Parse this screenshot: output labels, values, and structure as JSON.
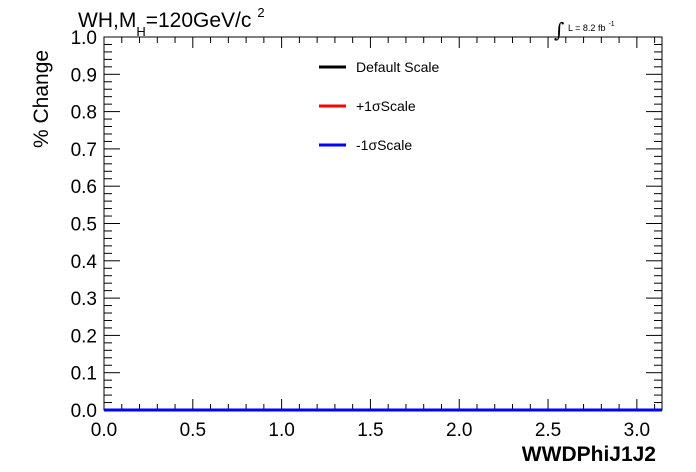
{
  "chart_data": {
    "type": "line",
    "title": {
      "part1": "WH,M",
      "sub": "H",
      "part2": "=120GeV/c",
      "sup": "2"
    },
    "lumi": {
      "integral": "∫",
      "text": "L = 8.2 fb",
      "sup": "-1"
    },
    "xlabel": "WWDPhiJ1J2",
    "ylabel": "% Change",
    "xlim": [
      0,
      3.14159
    ],
    "ylim": [
      0,
      1.0
    ],
    "x_ticks": [
      "0.0",
      "0.5",
      "1.0",
      "1.5",
      "2.0",
      "2.5",
      "3.0"
    ],
    "y_ticks": [
      "0.0",
      "0.1",
      "0.2",
      "0.3",
      "0.4",
      "0.5",
      "0.6",
      "0.7",
      "0.8",
      "0.9",
      "1.0"
    ],
    "grid": false,
    "legend_position": "top-center",
    "series": [
      {
        "name": "Default Scale",
        "color": "#000000",
        "x": [
          0,
          3.14159
        ],
        "y": [
          0,
          0
        ]
      },
      {
        "name": "+1σScale",
        "color": "#ff0000",
        "x": [
          0,
          3.14159
        ],
        "y": [
          0,
          0
        ]
      },
      {
        "name": "-1σScale",
        "color": "#0000ff",
        "x": [
          0,
          3.14159
        ],
        "y": [
          0,
          0
        ]
      }
    ]
  }
}
